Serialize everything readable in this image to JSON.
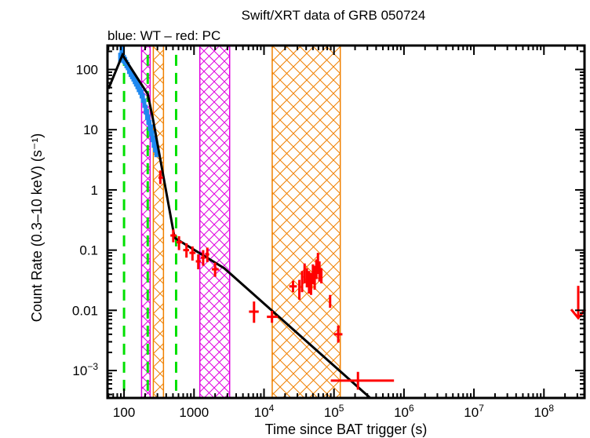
{
  "chart_data": {
    "type": "scatter",
    "title": "Swift/XRT data of GRB 050724",
    "subtitle": "blue: WT – red: PC",
    "xlabel": "Time since BAT trigger (s)",
    "ylabel": "Count Rate (0.3–10 keV) (s⁻¹)",
    "xscale": "log",
    "yscale": "log",
    "xlim": [
      58,
      380000000
    ],
    "ylim": [
      0.00035,
      250
    ],
    "grid": false,
    "x_ticks": [
      {
        "value": 100,
        "label": "100"
      },
      {
        "value": 1000,
        "label": "1000"
      },
      {
        "value": 10000,
        "label": "10",
        "sup": "4"
      },
      {
        "value": 100000,
        "label": "10",
        "sup": "5"
      },
      {
        "value": 1000000,
        "label": "10",
        "sup": "6"
      },
      {
        "value": 10000000,
        "label": "10",
        "sup": "7"
      },
      {
        "value": 100000000,
        "label": "10",
        "sup": "8"
      }
    ],
    "y_ticks": [
      {
        "value": 100,
        "label": "100"
      },
      {
        "value": 10,
        "label": "10"
      },
      {
        "value": 1,
        "label": "1"
      },
      {
        "value": 0.1,
        "label": "0.1"
      },
      {
        "value": 0.01,
        "label": "0.01"
      },
      {
        "value": 0.001,
        "label": "10",
        "sup": "−3"
      }
    ],
    "colors": {
      "wt": "#1e88f0",
      "pc": "#ff0000",
      "model": "#000000",
      "breaks": "#00e000",
      "band_magenta": "#e000e0",
      "band_orange": "#f08000"
    },
    "bands": [
      {
        "name": "magenta-band-1",
        "color": "band_magenta",
        "x0": 178,
        "x1": 236
      },
      {
        "name": "orange-band-1",
        "color": "band_orange",
        "x0": 262,
        "x1": 366
      },
      {
        "name": "magenta-band-2",
        "color": "band_magenta",
        "x0": 1210,
        "x1": 3230
      },
      {
        "name": "orange-band-2",
        "color": "band_orange",
        "x0": 13100,
        "x1": 123000
      }
    ],
    "break_times": [
      100,
      218,
      555
    ],
    "model_curve": {
      "name": "Power-law fit",
      "points": [
        [
          60,
          48
        ],
        [
          95,
          175
        ],
        [
          218,
          39
        ],
        [
          262,
          14
        ],
        [
          527,
          0.16
        ],
        [
          2700,
          0.05
        ],
        [
          330000,
          0.00035
        ]
      ]
    },
    "series": [
      {
        "name": "WT",
        "color": "wt",
        "points": [
          [
            88,
            160,
            30
          ],
          [
            92,
            200,
            40
          ],
          [
            96,
            175,
            30
          ],
          [
            100,
            150,
            25
          ],
          [
            104,
            140,
            22
          ],
          [
            108,
            125,
            20
          ],
          [
            113,
            115,
            18
          ],
          [
            118,
            100,
            16
          ],
          [
            124,
            90,
            15
          ],
          [
            130,
            82,
            13
          ],
          [
            136,
            75,
            12
          ],
          [
            142,
            68,
            11
          ],
          [
            148,
            62,
            10
          ],
          [
            155,
            56,
            9
          ],
          [
            162,
            50,
            8
          ],
          [
            170,
            45,
            7
          ],
          [
            178,
            40,
            7
          ],
          [
            186,
            34,
            6
          ],
          [
            195,
            28,
            5
          ],
          [
            204,
            22,
            4
          ],
          [
            213,
            18,
            3.5
          ],
          [
            222,
            15,
            3
          ],
          [
            232,
            12,
            2.5
          ],
          [
            243,
            10,
            2.2
          ],
          [
            254,
            8,
            1.8
          ],
          [
            265,
            6.5,
            1.5
          ],
          [
            277,
            5.5,
            1.3
          ],
          [
            290,
            4.6,
            1.1
          ]
        ]
      },
      {
        "name": "PC",
        "color": "pc",
        "points": [
          {
            "t": 330,
            "tlo": 310,
            "thi": 360,
            "c": 1.6,
            "clo": 1.25,
            "chi": 2.1
          },
          {
            "t": 505,
            "tlo": 460,
            "thi": 560,
            "c": 0.175,
            "clo": 0.135,
            "chi": 0.22
          },
          {
            "t": 610,
            "tlo": 560,
            "thi": 680,
            "c": 0.135,
            "clo": 0.1,
            "chi": 0.17
          },
          {
            "t": 780,
            "tlo": 700,
            "thi": 850,
            "c": 0.1,
            "clo": 0.075,
            "chi": 0.13
          },
          {
            "t": 950,
            "tlo": 860,
            "thi": 1050,
            "c": 0.09,
            "clo": 0.067,
            "chi": 0.115
          },
          {
            "t": 1150,
            "tlo": 1060,
            "thi": 1250,
            "c": 0.065,
            "clo": 0.048,
            "chi": 0.085
          },
          {
            "t": 1350,
            "tlo": 1250,
            "thi": 1450,
            "c": 0.075,
            "clo": 0.055,
            "chi": 0.1
          },
          {
            "t": 1550,
            "tlo": 1450,
            "thi": 1650,
            "c": 0.085,
            "clo": 0.063,
            "chi": 0.11
          },
          {
            "t": 2000,
            "tlo": 1800,
            "thi": 2250,
            "c": 0.048,
            "clo": 0.036,
            "chi": 0.062
          },
          {
            "t": 7200,
            "tlo": 6100,
            "thi": 8400,
            "c": 0.0095,
            "clo": 0.0062,
            "chi": 0.014
          },
          {
            "t": 13000,
            "tlo": 11000,
            "thi": 15800,
            "c": 0.0078,
            "clo": 0.0062,
            "chi": 0.0098
          },
          {
            "t": 26000,
            "tlo": 23000,
            "thi": 29500,
            "c": 0.025,
            "clo": 0.02,
            "chi": 0.031
          },
          {
            "t": 32000,
            "tlo": 31000,
            "thi": 33000,
            "c": 0.022,
            "clo": 0.015,
            "chi": 0.032
          },
          {
            "t": 35000,
            "tlo": 34000,
            "thi": 36000,
            "c": 0.03,
            "clo": 0.02,
            "chi": 0.045
          },
          {
            "t": 38000,
            "tlo": 37000,
            "thi": 39000,
            "c": 0.042,
            "clo": 0.028,
            "chi": 0.06
          },
          {
            "t": 41000,
            "tlo": 40000,
            "thi": 42000,
            "c": 0.035,
            "clo": 0.024,
            "chi": 0.05
          },
          {
            "t": 44000,
            "tlo": 43000,
            "thi": 45000,
            "c": 0.03,
            "clo": 0.019,
            "chi": 0.045
          },
          {
            "t": 47000,
            "tlo": 46000,
            "thi": 48000,
            "c": 0.028,
            "clo": 0.018,
            "chi": 0.042
          },
          {
            "t": 50000,
            "tlo": 49000,
            "thi": 51000,
            "c": 0.04,
            "clo": 0.027,
            "chi": 0.058
          },
          {
            "t": 53000,
            "tlo": 52000,
            "thi": 54000,
            "c": 0.035,
            "clo": 0.022,
            "chi": 0.055
          },
          {
            "t": 56000,
            "tlo": 55000,
            "thi": 57000,
            "c": 0.05,
            "clo": 0.033,
            "chi": 0.07
          },
          {
            "t": 59000,
            "tlo": 58000,
            "thi": 60000,
            "c": 0.06,
            "clo": 0.04,
            "chi": 0.09
          },
          {
            "t": 62000,
            "tlo": 61000,
            "thi": 63000,
            "c": 0.045,
            "clo": 0.03,
            "chi": 0.065
          },
          {
            "t": 66000,
            "tlo": 64000,
            "thi": 68000,
            "c": 0.038,
            "clo": 0.028,
            "chi": 0.05
          },
          {
            "t": 88000,
            "tlo": 86000,
            "thi": 90000,
            "c": 0.014,
            "clo": 0.011,
            "chi": 0.018
          },
          {
            "t": 115000,
            "tlo": 100000,
            "thi": 132000,
            "c": 0.004,
            "clo": 0.0029,
            "chi": 0.0056
          },
          {
            "t": 220000,
            "tlo": 90000,
            "thi": 720000,
            "c": 0.00068,
            "clo": 0.00048,
            "chi": 0.00095
          }
        ]
      }
    ],
    "upper_limits": [
      {
        "name": "PC upper limit",
        "color": "pc",
        "t": 330000000,
        "c": 0.011
      }
    ]
  }
}
